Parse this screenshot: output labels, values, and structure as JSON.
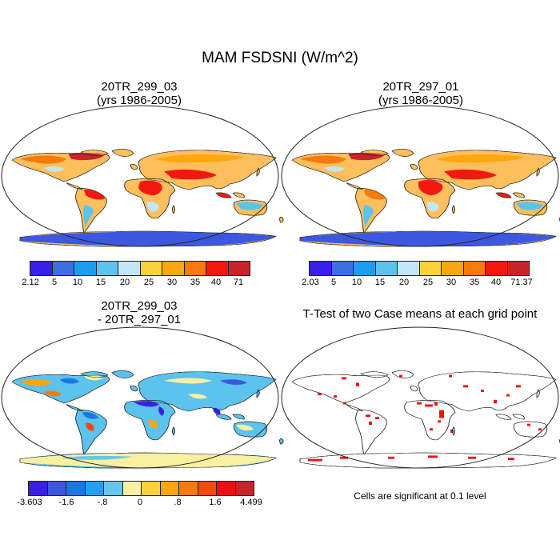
{
  "title": "MAM FSDSNI (W/m^2)",
  "panels": [
    {
      "title": "20TR_299_03\n(yrs 1986-2005)",
      "ticks": [
        "2.12",
        "5",
        "10",
        "15",
        "20",
        "25",
        "30",
        "35",
        "40",
        "71"
      ]
    },
    {
      "title": "20TR_297_01\n(yrs 1986-2005)",
      "ticks": [
        "2.03",
        "5",
        "10",
        "15",
        "20",
        "25",
        "30",
        "35",
        "40",
        "71.37"
      ]
    },
    {
      "title": "20TR_299_03\n- 20TR_297_01",
      "ticks": [
        "-3.603",
        "-1.6",
        "-.8",
        "0",
        ".8",
        "1.6",
        "4.499"
      ]
    },
    {
      "title": "T-Test of two Case means at each grid point",
      "note": "Cells are significant at 0.1 level"
    }
  ],
  "colors": {
    "main_scale": [
      "#3a1fe8",
      "#3d6fe0",
      "#1c9df0",
      "#5cc2ee",
      "#c2e6f5",
      "#fcd23a",
      "#fca70f",
      "#f77a0c",
      "#f21812",
      "#c8232b"
    ],
    "diff_scale": [
      "#3a1fe8",
      "#3d58e0",
      "#1677e5",
      "#1fa3f0",
      "#67c6ee",
      "#f9f0a0",
      "#fcd23a",
      "#fca70f",
      "#f77a0c",
      "#f24a0c",
      "#e9100f",
      "#c8232b"
    ],
    "significant": "#ee1111"
  }
}
